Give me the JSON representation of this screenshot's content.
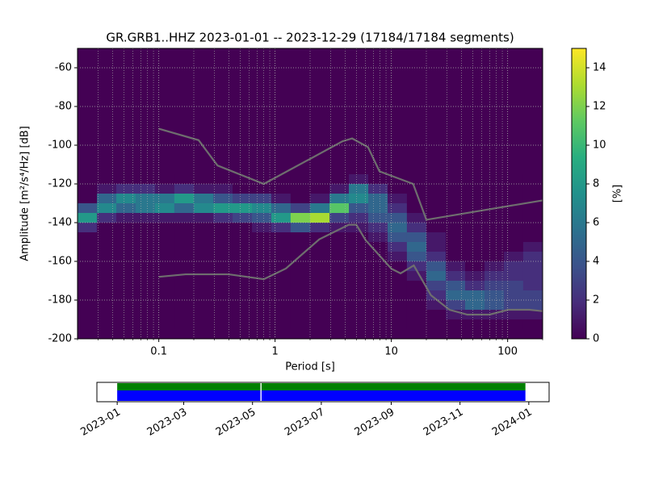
{
  "chart_data": [
    {
      "type": "heatmap",
      "title": "GR.GRB1..HHZ   2023-01-01 -- 2023-12-29  (17184/17184 segments)",
      "xlabel": "Period [s]",
      "ylabel": "Amplitude [m²/s⁴/Hz] [dB]",
      "xscale": "log",
      "xlim": [
        0.02,
        200
      ],
      "ylim": [
        -200,
        -50
      ],
      "xticks": [
        0.1,
        1,
        10,
        100
      ],
      "xminorticks": [
        0.02,
        0.03,
        0.04,
        0.05,
        0.06,
        0.07,
        0.08,
        0.09,
        0.2,
        0.3,
        0.4,
        0.5,
        0.6,
        0.7,
        0.8,
        0.9,
        2,
        3,
        4,
        5,
        6,
        7,
        8,
        9,
        20,
        30,
        40,
        50,
        60,
        70,
        80,
        90,
        200
      ],
      "yticks": [
        -200,
        -180,
        -160,
        -140,
        -120,
        -100,
        -80,
        -60
      ],
      "grid": true,
      "colormap": "viridis",
      "clim": [
        0,
        15
      ],
      "colorbar_ticks": [
        0,
        2,
        4,
        6,
        8,
        10,
        12,
        14
      ],
      "colorbar_label": "[%]",
      "xbins": [
        0.02,
        0.0294,
        0.0431,
        0.0633,
        0.0928,
        0.136,
        0.2,
        0.294,
        0.431,
        0.633,
        0.928,
        1.36,
        2,
        2.94,
        4.31,
        6.33,
        9.28,
        13.6,
        20,
        29.4,
        43.1,
        63.3,
        92.8,
        136,
        200
      ],
      "ybins": [
        -115,
        -120,
        -125,
        -130,
        -135,
        -140,
        -145,
        -150,
        -155,
        -160,
        -165,
        -170,
        -175,
        -180,
        -185,
        -190,
        -195
      ],
      "z": [
        [
          0,
          0,
          0,
          4,
          8,
          2,
          0,
          0,
          0,
          0,
          0,
          0,
          0,
          0,
          0,
          0
        ],
        [
          0,
          1,
          5,
          7,
          2,
          0,
          0,
          0,
          0,
          0,
          0,
          0,
          0,
          0,
          0,
          0
        ],
        [
          0,
          2,
          7,
          5,
          1,
          0,
          0,
          0,
          0,
          0,
          0,
          0,
          0,
          0,
          0,
          0
        ],
        [
          0,
          2,
          6,
          6,
          1,
          0,
          0,
          0,
          0,
          0,
          0,
          0,
          0,
          0,
          0,
          0
        ],
        [
          0,
          1,
          6,
          7,
          1,
          0,
          0,
          0,
          0,
          0,
          0,
          0,
          0,
          0,
          0,
          0
        ],
        [
          0,
          2,
          8,
          5,
          1,
          0,
          0,
          0,
          0,
          0,
          0,
          0,
          0,
          0,
          0,
          0
        ],
        [
          0,
          1,
          6,
          7,
          1,
          0,
          0,
          0,
          0,
          0,
          0,
          0,
          0,
          0,
          0,
          0
        ],
        [
          0,
          1,
          4,
          8,
          2,
          0,
          0,
          0,
          0,
          0,
          0,
          0,
          0,
          0,
          0,
          0
        ],
        [
          0,
          0,
          3,
          8,
          3,
          0,
          0,
          0,
          0,
          0,
          0,
          0,
          0,
          0,
          0,
          0
        ],
        [
          0,
          0,
          3,
          7,
          4,
          1,
          0,
          0,
          0,
          0,
          0,
          0,
          0,
          0,
          0,
          0
        ],
        [
          0,
          0,
          1,
          5,
          8,
          2,
          0,
          0,
          0,
          0,
          0,
          0,
          0,
          0,
          0,
          0
        ],
        [
          0,
          0,
          0,
          3,
          12,
          4,
          0,
          0,
          0,
          0,
          0,
          0,
          0,
          0,
          0,
          0
        ],
        [
          0,
          0,
          1,
          6,
          13,
          2,
          0,
          0,
          0,
          0,
          0,
          0,
          0,
          0,
          0,
          0
        ],
        [
          0,
          1,
          6,
          11,
          3,
          1,
          0,
          0,
          0,
          0,
          0,
          0,
          0,
          0,
          0,
          0
        ],
        [
          1,
          6,
          7,
          4,
          2,
          1,
          0,
          0,
          0,
          0,
          0,
          0,
          0,
          0,
          0,
          0
        ],
        [
          0,
          2,
          5,
          5,
          4,
          2,
          1,
          0,
          0,
          0,
          0,
          0,
          0,
          0,
          0,
          0
        ],
        [
          0,
          0,
          1,
          2,
          4,
          5,
          4,
          2,
          1,
          0,
          0,
          0,
          0,
          0,
          0,
          0
        ],
        [
          0,
          0,
          0,
          0,
          1,
          2,
          4,
          5,
          4,
          2,
          1,
          0,
          0,
          0,
          0,
          0
        ],
        [
          0,
          0,
          0,
          0,
          0,
          0,
          1,
          1,
          2,
          4,
          5,
          3,
          2,
          1,
          0,
          0
        ],
        [
          0,
          0,
          0,
          0,
          0,
          0,
          0,
          0,
          0,
          1,
          2,
          4,
          5,
          3,
          1,
          0
        ],
        [
          0,
          0,
          0,
          0,
          0,
          0,
          0,
          0,
          0,
          0,
          1,
          2,
          5,
          5,
          1,
          0
        ],
        [
          0,
          0,
          0,
          0,
          0,
          0,
          0,
          0,
          0,
          1,
          2,
          3,
          4,
          4,
          1,
          0
        ],
        [
          0,
          0,
          0,
          0,
          0,
          0,
          0,
          0,
          1,
          2,
          2,
          3,
          3,
          3,
          1,
          0
        ],
        [
          0,
          0,
          0,
          0,
          0,
          0,
          0,
          1,
          2,
          2,
          2,
          2,
          3,
          3,
          1,
          0
        ]
      ],
      "series": [
        {
          "color": "#6e6e6e",
          "x": [
            0.1,
            0.22,
            0.32,
            0.8,
            3.8,
            4.6,
            6.3,
            7.9,
            15.4,
            20,
            200
          ],
          "values": [
            -91.5,
            -97.4,
            -110.5,
            -120,
            -98,
            -96.5,
            -101,
            -113.5,
            -120,
            -138.5,
            -128.5
          ]
        },
        {
          "color": "#6e6e6e",
          "x": [
            0.1,
            0.17,
            0.4,
            0.8,
            1.24,
            2.4,
            4.3,
            5,
            6,
            10,
            12,
            15.6,
            21.9,
            31.6,
            45,
            70,
            101,
            154,
            200
          ],
          "values": [
            -168,
            -166.7,
            -166.7,
            -169.2,
            -163.7,
            -148.6,
            -141.1,
            -141.1,
            -149,
            -163.8,
            -166.2,
            -162.1,
            -177.5,
            -185,
            -187.5,
            -187.5,
            -185,
            -185,
            -185.7
          ]
        }
      ]
    },
    {
      "type": "timeline",
      "xlim": [
        "2022-12-14",
        "2024-01-19"
      ],
      "xticks": [
        "2023-01",
        "2023-03",
        "2023-05",
        "2023-07",
        "2023-09",
        "2023-11",
        "2024-01"
      ],
      "series": [
        {
          "color": "#008000",
          "segments": [
            [
              "2023-01-01",
              "2023-05-08"
            ],
            [
              "2023-05-09",
              "2023-12-29"
            ]
          ]
        },
        {
          "color": "#0000ff",
          "segments": [
            [
              "2023-01-01",
              "2023-05-08"
            ],
            [
              "2023-05-09",
              "2023-12-29"
            ]
          ]
        }
      ]
    }
  ]
}
